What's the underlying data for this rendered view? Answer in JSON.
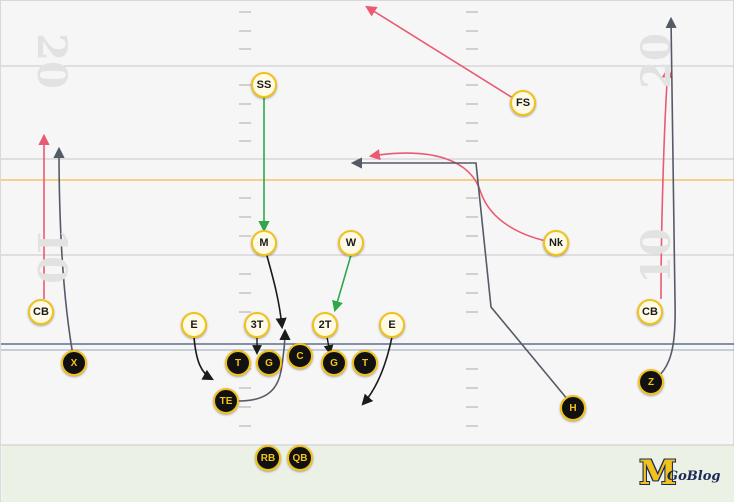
{
  "field": {
    "yard_numbers": {
      "left_top": "20",
      "left_bottom": "10",
      "right_top": "20",
      "right_bottom": "10"
    }
  },
  "colors": {
    "accent": "#f1c21b",
    "red_route": "#ea5a72",
    "green_route": "#2ea84a",
    "gray_route": "#555b66",
    "black_route": "#1a1a1a",
    "first_down_line": "#f3b94a",
    "line_of_scrimmage": "#5d6f8c"
  },
  "defense": [
    {
      "id": "fs",
      "label": "FS"
    },
    {
      "id": "ss",
      "label": "SS"
    },
    {
      "id": "nk",
      "label": "Nk"
    },
    {
      "id": "m",
      "label": "M"
    },
    {
      "id": "w",
      "label": "W"
    },
    {
      "id": "cb-left",
      "label": "CB"
    },
    {
      "id": "cb-right",
      "label": "CB"
    },
    {
      "id": "e-left",
      "label": "E"
    },
    {
      "id": "3t",
      "label": "3T"
    },
    {
      "id": "2t",
      "label": "2T"
    },
    {
      "id": "e-right",
      "label": "E"
    }
  ],
  "offense": [
    {
      "id": "x",
      "label": "X"
    },
    {
      "id": "t-left",
      "label": "T"
    },
    {
      "id": "g-left",
      "label": "G"
    },
    {
      "id": "c",
      "label": "C"
    },
    {
      "id": "g-right",
      "label": "G"
    },
    {
      "id": "t-right",
      "label": "T"
    },
    {
      "id": "te",
      "label": "TE"
    },
    {
      "id": "h",
      "label": "H"
    },
    {
      "id": "z",
      "label": "Z"
    },
    {
      "id": "rb",
      "label": "RB"
    },
    {
      "id": "qb",
      "label": "QB"
    }
  ],
  "logo": {
    "letter": "M",
    "text": "GoBlog"
  }
}
